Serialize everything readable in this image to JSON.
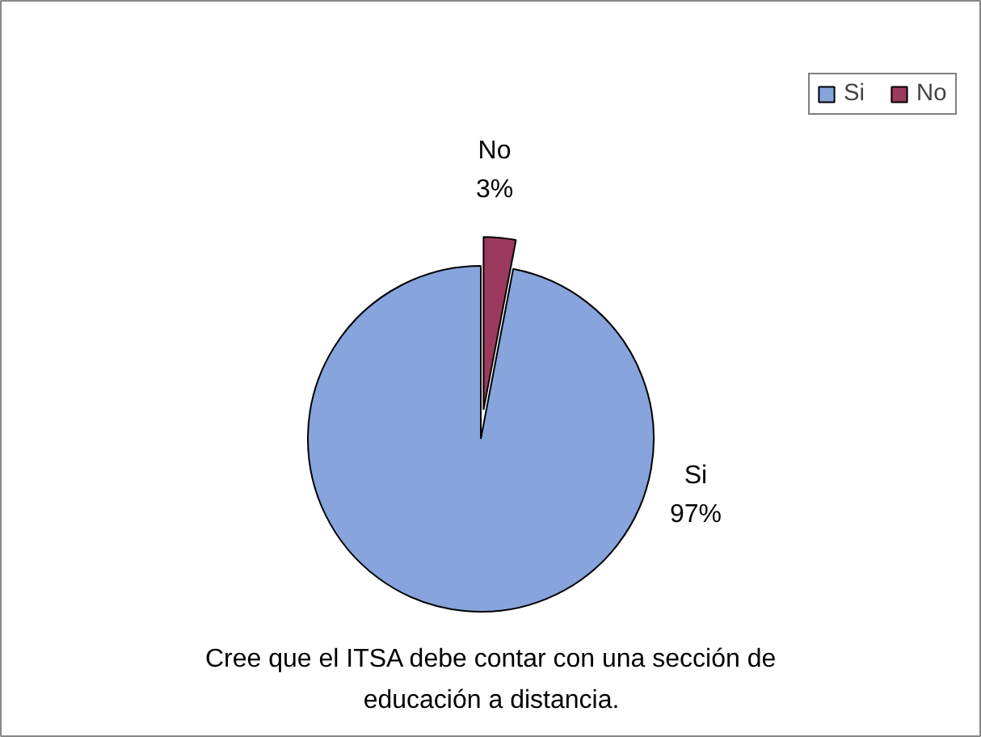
{
  "chart_data": {
    "type": "pie",
    "title": "Cree que el ITSA debe contar con una sección de educación a distancia.",
    "categories": [
      "Si",
      "No"
    ],
    "values": [
      97,
      3
    ],
    "colors": [
      "#87a4dc",
      "#9c3a5e"
    ],
    "value_labels": [
      "97%",
      "3%"
    ],
    "legend": "top right"
  }
}
